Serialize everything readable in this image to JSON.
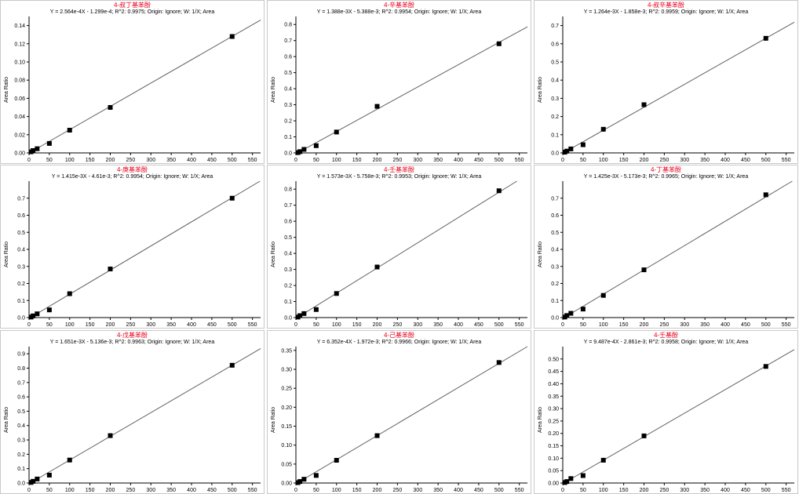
{
  "chart_data": [
    {
      "type": "scatter",
      "title": "4-叔丁基苯酚",
      "subtitle": "Y = 2.564e-4X - 1.299e-4; R^2: 0.9975; Origin: Ignore; W: 1/X; Area",
      "ylabel": "Area Ratio",
      "xlim": [
        0,
        570
      ],
      "ylim": [
        0,
        0.15
      ],
      "xticks": [
        0,
        50,
        100,
        150,
        200,
        250,
        300,
        350,
        400,
        450,
        500,
        550
      ],
      "yticks": [
        0,
        0.02,
        0.04,
        0.06,
        0.08,
        0.1,
        0.12,
        0.14
      ],
      "ytick_labels": [
        "0.00",
        "0.02",
        "0.04",
        "0.06",
        "0.08",
        "0.10",
        "0.12",
        "0.14"
      ],
      "slope": 0.0002564,
      "intercept": -0.0001299,
      "x": [
        5,
        10,
        20,
        50,
        100,
        200,
        500
      ],
      "y": [
        0.0012,
        0.0026,
        0.0046,
        0.0104,
        0.025,
        0.05,
        0.128
      ]
    },
    {
      "type": "scatter",
      "title": "4-辛基苯酚",
      "subtitle": "Y = 1.388e-3X - 5.388e-3; R^2: 0.9954; Origin: Ignore; W: 1/X; Area",
      "ylabel": "Area Ratio",
      "xlim": [
        0,
        570
      ],
      "ylim": [
        0,
        0.85
      ],
      "xticks": [
        0,
        50,
        100,
        150,
        200,
        250,
        300,
        350,
        400,
        450,
        500,
        550
      ],
      "yticks": [
        0,
        0.1,
        0.2,
        0.3,
        0.4,
        0.5,
        0.6,
        0.7,
        0.8
      ],
      "ytick_labels": [
        "0.0",
        "0.1",
        "0.2",
        "0.3",
        "0.4",
        "0.5",
        "0.6",
        "0.7",
        "0.8"
      ],
      "slope": 0.001388,
      "intercept": -0.005388,
      "x": [
        5,
        10,
        20,
        50,
        100,
        200,
        500
      ],
      "y": [
        0.002,
        0.008,
        0.022,
        0.045,
        0.13,
        0.29,
        0.68
      ]
    },
    {
      "type": "scatter",
      "title": "4-叔辛基苯酚",
      "subtitle": "Y = 1.264e-3X - 1.858e-3; R^2: 0.9959; Origin: Ignore; W: 1/X; Area",
      "ylabel": "Area Ratio",
      "xlim": [
        0,
        570
      ],
      "ylim": [
        0,
        0.75
      ],
      "xticks": [
        0,
        50,
        100,
        150,
        200,
        250,
        300,
        350,
        400,
        450,
        500,
        550
      ],
      "yticks": [
        0,
        0.1,
        0.2,
        0.3,
        0.4,
        0.5,
        0.6,
        0.7
      ],
      "ytick_labels": [
        "0.0",
        "0.1",
        "0.2",
        "0.3",
        "0.4",
        "0.5",
        "0.6",
        "0.7"
      ],
      "slope": 0.001264,
      "intercept": -0.001858,
      "x": [
        5,
        10,
        20,
        50,
        100,
        200,
        500
      ],
      "y": [
        0.004,
        0.01,
        0.022,
        0.045,
        0.13,
        0.265,
        0.63
      ]
    },
    {
      "type": "scatter",
      "title": "4-庚基苯酚",
      "subtitle": "Y = 1.415e-3X - 4.61e-3; R^2: 0.9954; Origin: Ignore; W: 1/X; Area",
      "ylabel": "Area Ratio",
      "xlim": [
        0,
        570
      ],
      "ylim": [
        0,
        0.8
      ],
      "xticks": [
        0,
        50,
        100,
        150,
        200,
        250,
        300,
        350,
        400,
        450,
        500,
        550
      ],
      "yticks": [
        0,
        0.1,
        0.2,
        0.3,
        0.4,
        0.5,
        0.6,
        0.7
      ],
      "ytick_labels": [
        "0.0",
        "0.1",
        "0.2",
        "0.3",
        "0.4",
        "0.5",
        "0.6",
        "0.7"
      ],
      "slope": 0.001415,
      "intercept": -0.00461,
      "x": [
        5,
        10,
        20,
        50,
        100,
        200,
        500
      ],
      "y": [
        0.003,
        0.01,
        0.022,
        0.045,
        0.14,
        0.285,
        0.7
      ]
    },
    {
      "type": "scatter",
      "title": "4-壬基苯酚",
      "subtitle": "Y = 1.573e-3X - 5.758e-3; R^2: 0.9953; Origin: Ignore; W: 1/X; Area",
      "ylabel": "Area Ratio",
      "xlim": [
        0,
        570
      ],
      "ylim": [
        0,
        0.85
      ],
      "xticks": [
        0,
        50,
        100,
        150,
        200,
        250,
        300,
        350,
        400,
        450,
        500,
        550
      ],
      "yticks": [
        0,
        0.1,
        0.2,
        0.3,
        0.4,
        0.5,
        0.6,
        0.7,
        0.8
      ],
      "ytick_labels": [
        "0.0",
        "0.1",
        "0.2",
        "0.3",
        "0.4",
        "0.5",
        "0.6",
        "0.7",
        "0.8"
      ],
      "slope": 0.001573,
      "intercept": -0.005758,
      "x": [
        5,
        10,
        20,
        50,
        100,
        200,
        500
      ],
      "y": [
        0.003,
        0.012,
        0.025,
        0.05,
        0.15,
        0.315,
        0.79
      ]
    },
    {
      "type": "scatter",
      "title": "4-丁基苯酚",
      "subtitle": "Y = 1.425e-3X - 5.173e-3; R^2: 0.9965; Origin: Ignore; W: 1/X; Area",
      "ylabel": "Area Ratio",
      "xlim": [
        0,
        570
      ],
      "ylim": [
        0,
        0.8
      ],
      "xticks": [
        0,
        50,
        100,
        150,
        200,
        250,
        300,
        350,
        400,
        450,
        500,
        550
      ],
      "yticks": [
        0,
        0.1,
        0.2,
        0.3,
        0.4,
        0.5,
        0.6,
        0.7
      ],
      "ytick_labels": [
        "0.0",
        "0.1",
        "0.2",
        "0.3",
        "0.4",
        "0.5",
        "0.6",
        "0.7"
      ],
      "slope": 0.001425,
      "intercept": -0.005173,
      "x": [
        5,
        10,
        20,
        50,
        100,
        200,
        500
      ],
      "y": [
        0.003,
        0.012,
        0.025,
        0.05,
        0.13,
        0.28,
        0.72
      ]
    },
    {
      "type": "scatter",
      "title": "4-戊基苯酚",
      "subtitle": "Y = 1.651e-3X - 5.136e-3; R^2: 0.9963; Origin: Ignore; W: 1/X; Area",
      "ylabel": "Area Ratio",
      "xlim": [
        0,
        570
      ],
      "ylim": [
        0,
        0.95
      ],
      "xticks": [
        0,
        50,
        100,
        150,
        200,
        250,
        300,
        350,
        400,
        450,
        500,
        550
      ],
      "yticks": [
        0,
        0.1,
        0.2,
        0.3,
        0.4,
        0.5,
        0.6,
        0.7,
        0.8,
        0.9
      ],
      "ytick_labels": [
        "0.0",
        "0.1",
        "0.2",
        "0.3",
        "0.4",
        "0.5",
        "0.6",
        "0.7",
        "0.8",
        "0.9"
      ],
      "slope": 0.001651,
      "intercept": -0.005136,
      "x": [
        5,
        10,
        20,
        50,
        100,
        200,
        500
      ],
      "y": [
        0.004,
        0.012,
        0.028,
        0.055,
        0.16,
        0.33,
        0.82
      ]
    },
    {
      "type": "scatter",
      "title": "4-己基苯酚",
      "subtitle": "Y = 6.352e-4X - 1.972e-3; R^2: 0.9966; Origin: Ignore; W: 1/X; Area",
      "ylabel": "Area Ratio",
      "xlim": [
        0,
        570
      ],
      "ylim": [
        0,
        0.36
      ],
      "xticks": [
        0,
        50,
        100,
        150,
        200,
        250,
        300,
        350,
        400,
        450,
        500,
        550
      ],
      "yticks": [
        0,
        0.05,
        0.1,
        0.15,
        0.2,
        0.25,
        0.3,
        0.35
      ],
      "ytick_labels": [
        "0.00",
        "0.05",
        "0.10",
        "0.15",
        "0.20",
        "0.25",
        "0.30",
        "0.35"
      ],
      "slope": 0.0006352,
      "intercept": -0.001972,
      "x": [
        5,
        10,
        20,
        50,
        100,
        200,
        500
      ],
      "y": [
        0.001,
        0.004,
        0.01,
        0.02,
        0.06,
        0.125,
        0.318
      ]
    },
    {
      "type": "scatter",
      "title": "4-壬基酚",
      "subtitle": "Y = 9.487e-4X - 2.861e-3; R^2: 0.9958; Origin: Ignore; W: 1/X; Area",
      "ylabel": "Area Ratio",
      "xlim": [
        0,
        570
      ],
      "ylim": [
        0,
        0.55
      ],
      "xticks": [
        0,
        50,
        100,
        150,
        200,
        250,
        300,
        350,
        400,
        450,
        500,
        550
      ],
      "yticks": [
        0,
        0.05,
        0.1,
        0.15,
        0.2,
        0.25,
        0.3,
        0.35,
        0.4,
        0.45,
        0.5
      ],
      "ytick_labels": [
        "0.00",
        "0.05",
        "0.10",
        "0.15",
        "0.20",
        "0.25",
        "0.30",
        "0.35",
        "0.40",
        "0.45",
        "0.50"
      ],
      "slope": 0.0009487,
      "intercept": -0.002861,
      "x": [
        5,
        10,
        20,
        50,
        100,
        200,
        500
      ],
      "y": [
        0.002,
        0.006,
        0.018,
        0.03,
        0.092,
        0.19,
        0.47
      ]
    }
  ],
  "colors": {
    "title": "#e8001c",
    "line": "#606060",
    "marker": "#000000",
    "border": "#c8c8c8"
  }
}
